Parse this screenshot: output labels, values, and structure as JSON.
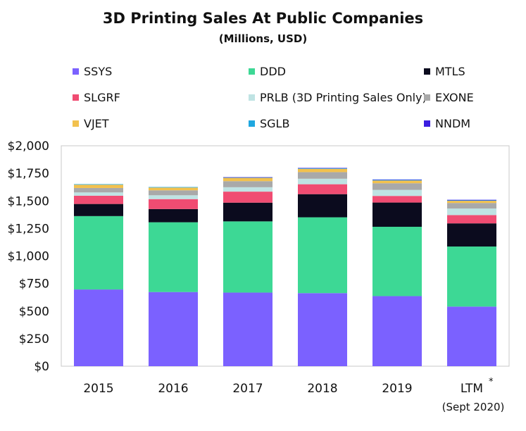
{
  "chart_data": {
    "type": "bar",
    "stacked": true,
    "title": "3D Printing Sales At Public Companies",
    "subtitle": "(Millions, USD)",
    "xlabel": "",
    "ylabel": "",
    "categories": [
      "2015",
      "2016",
      "2017",
      "2018",
      "2019",
      "LTM"
    ],
    "category_notes": [
      "",
      "",
      "",
      "",
      "",
      "(Sept 2020)"
    ],
    "category_superscripts": [
      "",
      "",
      "",
      "",
      "",
      "*"
    ],
    "ylim": [
      0,
      2000
    ],
    "yticks": [
      0,
      250,
      500,
      750,
      1000,
      1250,
      1500,
      1750,
      2000
    ],
    "ytick_labels": [
      "$0",
      "$250",
      "$500",
      "$750",
      "$1,000",
      "$1,250",
      "$1,500",
      "$1,750",
      "$2,000"
    ],
    "grid": false,
    "legend_position": "top",
    "series": [
      {
        "name": "SSYS",
        "color": "#7b61ff",
        "values": [
          696,
          673,
          668,
          663,
          636,
          541
        ]
      },
      {
        "name": "DDD",
        "color": "#3dd895",
        "values": [
          666,
          633,
          646,
          688,
          629,
          545
        ]
      },
      {
        "name": "MTLS",
        "color": "#0b0b1e",
        "values": [
          110,
          120,
          170,
          210,
          220,
          210
        ]
      },
      {
        "name": "SLGRF",
        "color": "#f04c72",
        "values": [
          75,
          90,
          100,
          90,
          60,
          75
        ]
      },
      {
        "name": "PRLB (3D Printing Sales Only)",
        "color": "#bfe3e3",
        "values": [
          30,
          35,
          40,
          50,
          55,
          60
        ]
      },
      {
        "name": "EXONE",
        "color": "#a9a9a9",
        "values": [
          40,
          45,
          55,
          60,
          60,
          50
        ]
      },
      {
        "name": "VJET",
        "color": "#f2c14e",
        "values": [
          30,
          25,
          30,
          30,
          25,
          20
        ]
      },
      {
        "name": "SGLB",
        "color": "#1fa7e0",
        "values": [
          5,
          5,
          5,
          6,
          5,
          4
        ]
      },
      {
        "name": "NNDM",
        "color": "#3b1de0",
        "values": [
          0,
          0,
          1,
          2,
          4,
          5
        ]
      }
    ]
  }
}
